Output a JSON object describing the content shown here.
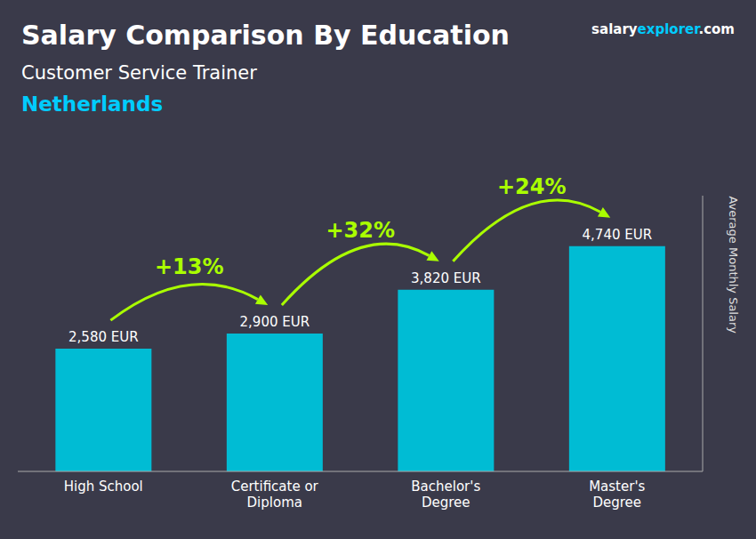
{
  "chart_data": {
    "type": "bar",
    "title": "Salary Comparison By Education",
    "subtitle": "Customer Service Trainer",
    "country": {
      "text": "Netherlands",
      "color": "#00ccff"
    },
    "watermark": [
      {
        "text": "salary",
        "color": "#ffffff"
      },
      {
        "text": "explorer",
        "color": "#00ccff"
      },
      {
        "text": ".com",
        "color": "#ffffff"
      }
    ],
    "ylabel": "Average Monthly Salary",
    "categories": [
      "High School",
      "Certificate or\nDiploma",
      "Bachelor's\nDegree",
      "Master's\nDegree"
    ],
    "values": [
      2580,
      2900,
      3820,
      4740
    ],
    "value_labels": [
      "2,580 EUR",
      "2,900 EUR",
      "3,820 EUR",
      "4,740 EUR"
    ],
    "data_labels": true,
    "color": "#00bcd4",
    "annotations": [
      {
        "text": "+13%",
        "from": "High School",
        "to": "Certificate or\nDiploma",
        "color": "#aaff00"
      },
      {
        "text": "+32%",
        "from": "Certificate or\nDiploma",
        "to": "Bachelor's\nDegree",
        "color": "#aaff00"
      },
      {
        "text": "+24%",
        "from": "Bachelor's\nDegree",
        "to": "Master's\nDegree",
        "color": "#aaff00"
      }
    ],
    "ylim": [
      0,
      5800
    ],
    "yticks": [],
    "tick_labels": "x",
    "grid": false
  }
}
